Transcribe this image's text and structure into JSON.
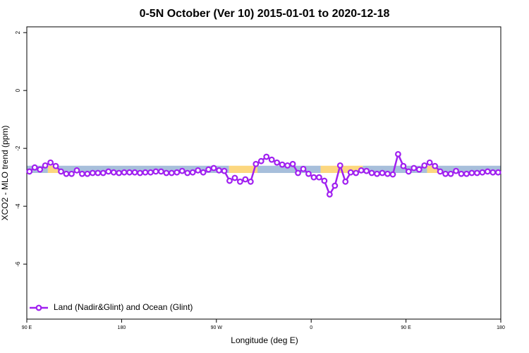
{
  "chart_data": {
    "type": "line",
    "title": "0-5N October (Ver 10)   2015-01-01 to 2020-12-18",
    "x_label": "Longitude (deg E)",
    "y_label": "XCO2 - MLO trend (ppm)",
    "xlim": [
      90,
      540
    ],
    "xticks": [
      {
        "value": 90,
        "label": "90 E"
      },
      180,
      {
        "value": 270,
        "label": "90 W"
      },
      {
        "value": 360,
        "label": "0"
      },
      {
        "value": 450,
        "label": "90 E"
      },
      {
        "value": 540,
        "label": "180"
      }
    ],
    "ylim": [
      -7.9,
      2.2
    ],
    "yticks": [
      2,
      0,
      -2,
      -4,
      -6
    ],
    "legend": "bottom-left",
    "band_ylim": [
      -2.85,
      -2.6
    ],
    "bands": [
      {
        "x": [
          90,
          110
        ],
        "color": "#a7bfdb"
      },
      {
        "x": [
          110,
          120
        ],
        "color": "#fcd77f"
      },
      {
        "x": [
          120,
          282
        ],
        "color": "#a7bfdb"
      },
      {
        "x": [
          282,
          309
        ],
        "color": "#fcd77f"
      },
      {
        "x": [
          309,
          369
        ],
        "color": "#a7bfdb"
      },
      {
        "x": [
          369,
          409
        ],
        "color": "#fcd77f"
      },
      {
        "x": [
          409,
          470
        ],
        "color": "#a7bfdb"
      },
      {
        "x": [
          470,
          480
        ],
        "color": "#fcd77f"
      },
      {
        "x": [
          480,
          540
        ],
        "color": "#a7bfdb"
      }
    ],
    "x": [
      92.5,
      97.5,
      102.5,
      107.5,
      112.5,
      117.5,
      122.5,
      127.5,
      132.5,
      137.5,
      142.5,
      147.5,
      152.5,
      157.5,
      162.5,
      167.5,
      172.5,
      177.5,
      182.5,
      187.5,
      192.5,
      197.5,
      202.5,
      207.5,
      212.5,
      217.5,
      222.5,
      227.5,
      232.5,
      237.5,
      242.5,
      247.5,
      252.5,
      257.5,
      262.5,
      267.5,
      272.5,
      277.5,
      282.5,
      287.5,
      292.5,
      297.5,
      302.5,
      307.5,
      312.5,
      317.5,
      322.5,
      327.5,
      332.5,
      337.5,
      342.5,
      347.5,
      352.5,
      357.5,
      362.5,
      367.5,
      372.5,
      377.5,
      382.5,
      387.5,
      392.5,
      397.5,
      402.5,
      407.5,
      412.5,
      417.5,
      422.5,
      427.5,
      432.5,
      437.5,
      442.5,
      447.5,
      452.5,
      457.5,
      462.5,
      467.5,
      472.5,
      477.5,
      482.5,
      487.5,
      492.5,
      497.5,
      502.5,
      507.5,
      512.5,
      517.5,
      522.5,
      527.5,
      532.5,
      537.5
    ],
    "series": [
      {
        "name": "Land (Nadir&Glint) and Ocean (Glint)",
        "color": "#a020f0",
        "values": [
          -2.8,
          -2.66,
          -2.73,
          -2.59,
          -2.49,
          -2.61,
          -2.8,
          -2.88,
          -2.88,
          -2.76,
          -2.88,
          -2.88,
          -2.85,
          -2.85,
          -2.85,
          -2.8,
          -2.83,
          -2.85,
          -2.83,
          -2.83,
          -2.83,
          -2.85,
          -2.83,
          -2.83,
          -2.8,
          -2.8,
          -2.85,
          -2.85,
          -2.83,
          -2.78,
          -2.85,
          -2.83,
          -2.76,
          -2.83,
          -2.73,
          -2.68,
          -2.76,
          -2.78,
          -3.12,
          -3.02,
          -3.15,
          -3.07,
          -3.15,
          -2.54,
          -2.44,
          -2.29,
          -2.39,
          -2.49,
          -2.56,
          -2.59,
          -2.54,
          -2.85,
          -2.71,
          -2.88,
          -3.0,
          -3.0,
          -3.12,
          -3.59,
          -3.29,
          -2.59,
          -3.15,
          -2.83,
          -2.85,
          -2.76,
          -2.78,
          -2.85,
          -2.88,
          -2.85,
          -2.88,
          -2.9,
          -2.2,
          -2.61,
          -2.8,
          -2.68,
          -2.73,
          -2.59,
          -2.49,
          -2.61,
          -2.8,
          -2.88,
          -2.88,
          -2.78,
          -2.88,
          -2.88,
          -2.85,
          -2.85,
          -2.83,
          -2.8,
          -2.83,
          -2.83
        ]
      }
    ]
  }
}
